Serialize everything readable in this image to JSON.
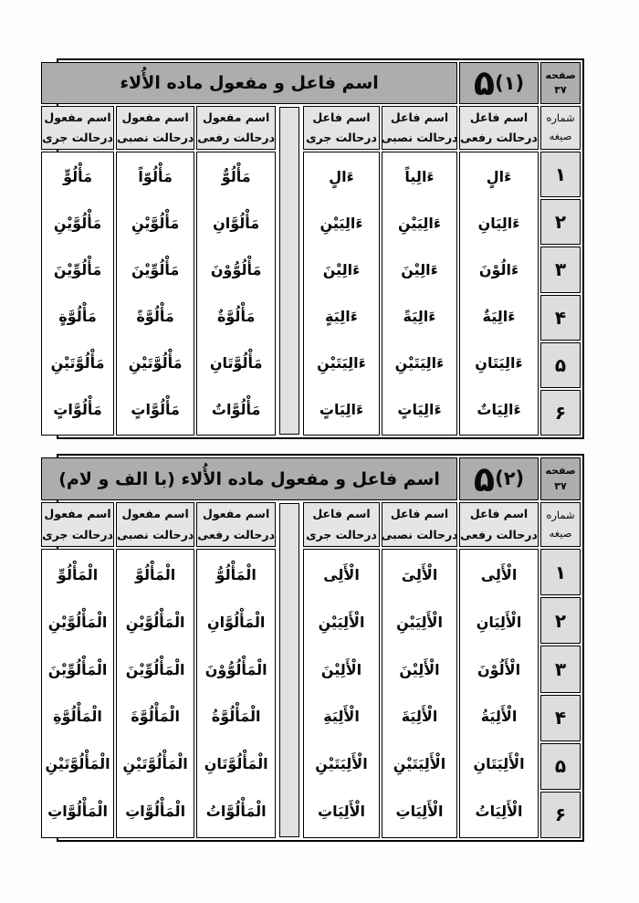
{
  "colors": {
    "title_band": "#aeacac",
    "header_cell": "#e6e4e4",
    "number_cell": "#dedcdc",
    "separator_strip": "#e2e0e0",
    "data_cell": "#ffffff",
    "border": "#000000"
  },
  "tables": [
    {
      "title": "اسم فاعل و مفعول ماده الأُلاء",
      "big_label": {
        "digit": "۵",
        "paren": "(۱)"
      },
      "page_label": "صفحه",
      "page_number": "۳۷",
      "serial_header": {
        "line1": "شماره",
        "line2": "صیغه"
      },
      "serials": [
        "۱",
        "۲",
        "۳",
        "۴",
        "۵",
        "۶"
      ],
      "columns": [
        {
          "line1": "اسم فاعل",
          "line2": "درحالت رفعی",
          "words": [
            "ءَالٍ",
            "ءَالِیَانِ",
            "ءَالُوْنَ",
            "ءَالِیَةٌ",
            "ءَالِیَتَانِ",
            "ءَالِیَاتٌ"
          ]
        },
        {
          "line1": "اسم فاعل",
          "line2": "درحالت نصبی",
          "words": [
            "ءَالِیاً",
            "ءَالِیَیْنِ",
            "ءَالِیْنَ",
            "ءَالِیَةً",
            "ءَالِیَتَیْنِ",
            "ءَالِیَاتٍ"
          ]
        },
        {
          "line1": "اسم فاعل",
          "line2": "درحالت جری",
          "words": [
            "ءَالٍ",
            "ءَالِیَیْنِ",
            "ءَالِیْنَ",
            "ءَالِیَةٍ",
            "ءَالِیَتَیْنِ",
            "ءَالِیَاتٍ"
          ]
        },
        {
          "line1": "اسم مفعول",
          "line2": "درحالت رفعی",
          "words": [
            "مَأْلُوٌّ",
            "مَأْلُوَّانِ",
            "مَأْلُوُّوْنَ",
            "مَأْلُوَّةٌ",
            "مَأْلُوَّتَانِ",
            "مَأْلُوَّاتٌ"
          ]
        },
        {
          "line1": "اسم مفعول",
          "line2": "درحالت نصبی",
          "words": [
            "مَأْلُوّاً",
            "مَأْلُوَّیْنِ",
            "مَأْلُوِّیْنَ",
            "مَأْلُوَّةً",
            "مَأْلُوَّتَیْنِ",
            "مَأْلُوَّاتٍ"
          ]
        },
        {
          "line1": "اسم مفعول",
          "line2": "درحالت جری",
          "words": [
            "مَأْلُوٍّ",
            "مَأْلُوَّیْنِ",
            "مَأْلُوِّیْنَ",
            "مَأْلُوَّةٍ",
            "مَأْلُوَّتَیْنِ",
            "مَأْلُوَّاتٍ"
          ]
        }
      ]
    },
    {
      "title": "اسم فاعل و مفعول ماده الأُلاء (با الف و لام)",
      "big_label": {
        "digit": "۵",
        "paren": "(۲)"
      },
      "page_label": "صفحه",
      "page_number": "۳۷",
      "serial_header": {
        "line1": "شماره",
        "line2": "صیغه"
      },
      "serials": [
        "۱",
        "۲",
        "۳",
        "۴",
        "۵",
        "۶"
      ],
      "columns": [
        {
          "line1": "اسم فاعل",
          "line2": "درحالت رفعی",
          "words": [
            "الْأَلِی",
            "الْأَلِیَانِ",
            "الْأَلُوْنَ",
            "الْأَلِیَةُ",
            "الْأَلِیَتَانِ",
            "الْأَلِیَاتُ"
          ]
        },
        {
          "line1": "اسم فاعل",
          "line2": "درحالت نصبی",
          "words": [
            "الْأَلِیَ",
            "الْأَلِیَیْنِ",
            "الْأَلِیْنَ",
            "الْأَلِیَةَ",
            "الْأَلِیَتَیْنِ",
            "الْأَلِیَاتِ"
          ]
        },
        {
          "line1": "اسم فاعل",
          "line2": "درحالت جری",
          "words": [
            "الْأَلِی",
            "الْأَلِیَیْنِ",
            "الْأَلِیْنَ",
            "الْأَلِیَةِ",
            "الْأَلِیَتَیْنِ",
            "الْأَلِیَاتِ"
          ]
        },
        {
          "line1": "اسم مفعول",
          "line2": "درحالت رفعی",
          "words": [
            "الْمَأْلُوُّ",
            "الْمَأْلُوَّانِ",
            "الْمَأْلُوُّوْنَ",
            "الْمَأْلُوَّةُ",
            "الْمَأْلُوَّتَانِ",
            "الْمَأْلُوَّاتُ"
          ]
        },
        {
          "line1": "اسم مفعول",
          "line2": "درحالت نصبی",
          "words": [
            "الْمَأْلُوَّ",
            "الْمَأْلُوَّیْنِ",
            "الْمَأْلُوِّیْنَ",
            "الْمَأْلُوَّةَ",
            "الْمَأْلُوَّتَیْنِ",
            "الْمَأْلُوَّاتِ"
          ]
        },
        {
          "line1": "اسم مفعول",
          "line2": "درحالت جری",
          "words": [
            "الْمَأْلُوِّ",
            "الْمَأْلُوَّیْنِ",
            "الْمَأْلُوِّیْنَ",
            "الْمَأْلُوَّةِ",
            "الْمَأْلُوَّتَیْنِ",
            "الْمَأْلُوَّاتِ"
          ]
        }
      ]
    }
  ]
}
